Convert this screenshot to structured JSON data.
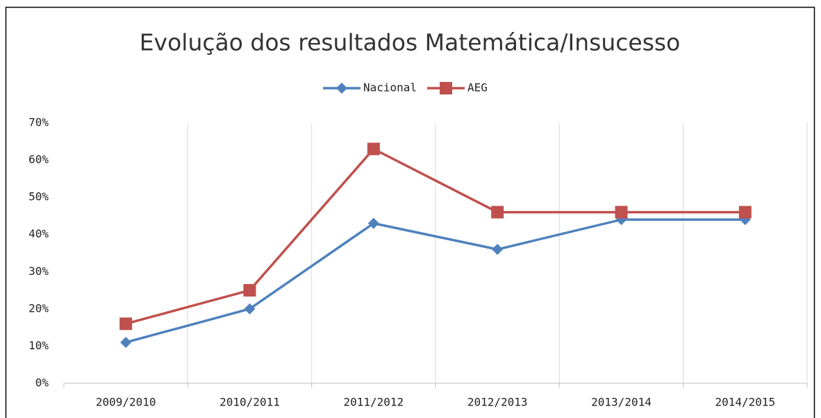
{
  "chart_data": {
    "type": "line",
    "title": "Evolução dos resultados Matemática/Insucesso",
    "categories": [
      "2009/2010",
      "2010/2011",
      "2011/2012",
      "2012/2013",
      "2013/2014",
      "2014/2015"
    ],
    "series": [
      {
        "name": "Nacional",
        "color": "#4f81bd",
        "marker": "diamond",
        "values": [
          11,
          20,
          43,
          36,
          44,
          44
        ]
      },
      {
        "name": "AEG",
        "color": "#c0504d",
        "marker": "square",
        "values": [
          16,
          25,
          63,
          46,
          46,
          46
        ]
      }
    ],
    "ylim": [
      0,
      70
    ],
    "yticks": [
      {
        "value": 0,
        "label": "0%"
      },
      {
        "value": 10,
        "label": "10%"
      },
      {
        "value": 20,
        "label": "20%"
      },
      {
        "value": 30,
        "label": "30%"
      },
      {
        "value": 40,
        "label": "40%"
      },
      {
        "value": 50,
        "label": "50%"
      },
      {
        "value": 60,
        "label": "60%"
      },
      {
        "value": 70,
        "label": "70%"
      }
    ],
    "grid": "vertical",
    "legend": "top"
  }
}
